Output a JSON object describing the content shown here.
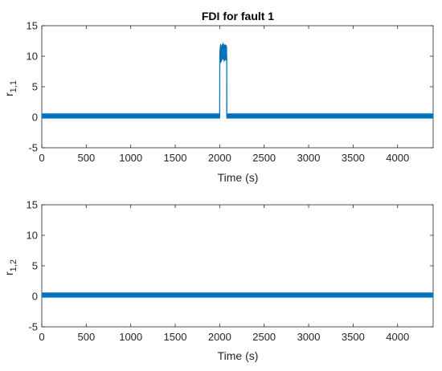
{
  "chart_data": [
    {
      "type": "line",
      "title": "FDI for fault 1",
      "xlabel": "Time (s)",
      "ylabel": "r",
      "ylabel_subscript": "1,1",
      "xlim": [
        0,
        4400
      ],
      "ylim": [
        -5,
        15
      ],
      "x_ticks": [
        "0",
        "500",
        "1000",
        "1500",
        "2000",
        "2500",
        "3000",
        "3500",
        "4000"
      ],
      "y_ticks": [
        "-5",
        "0",
        "5",
        "10",
        "15"
      ],
      "grid": false,
      "line_color": "#0072BD",
      "series": [
        {
          "x": [
            0,
            2000,
            2001,
            2009,
            2015,
            2025,
            2040,
            2050,
            2060,
            2075,
            2079,
            2080,
            4400
          ],
          "y": [
            0.2,
            0.2,
            9.5,
            10.8,
            10.2,
            10.6,
            10.9,
            10.4,
            10.7,
            10.5,
            10.2,
            0.2,
            0.2
          ],
          "band_halfwidth": [
            0.35,
            0.35,
            1.2,
            1.2,
            1.2,
            1.2,
            1.2,
            1.2,
            1.2,
            1.2,
            1.2,
            0.35,
            0.35
          ]
        }
      ]
    },
    {
      "type": "line",
      "title": "",
      "xlabel": "Time (s)",
      "ylabel": "r",
      "ylabel_subscript": "1,2",
      "xlim": [
        0,
        4400
      ],
      "ylim": [
        -5,
        15
      ],
      "x_ticks": [
        "0",
        "500",
        "1000",
        "1500",
        "2000",
        "2500",
        "3000",
        "3500",
        "4000"
      ],
      "y_ticks": [
        "-5",
        "0",
        "5",
        "10",
        "15"
      ],
      "grid": false,
      "line_color": "#0072BD",
      "series": [
        {
          "x": [
            0,
            4400
          ],
          "y": [
            0.2,
            0.2
          ],
          "band_halfwidth": [
            0.35,
            0.35
          ]
        }
      ]
    }
  ]
}
